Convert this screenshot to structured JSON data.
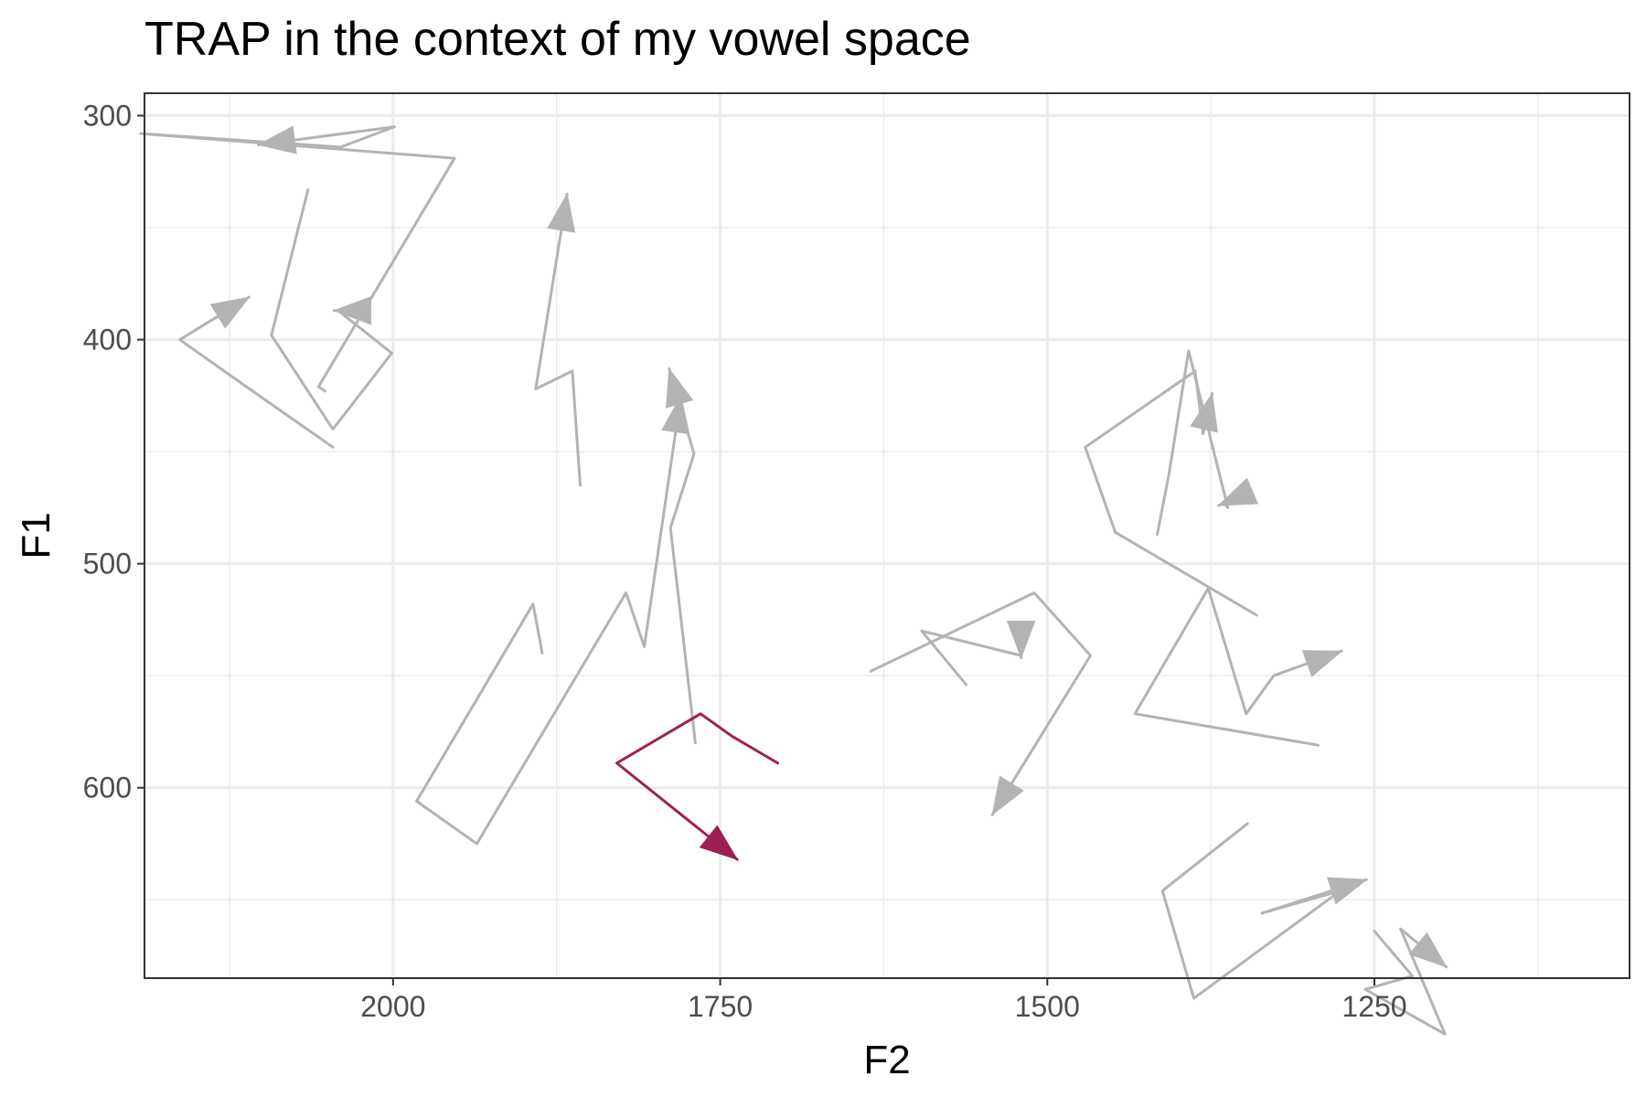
{
  "chart_data": {
    "type": "line",
    "title": "TRAP in the context of my vowel space",
    "xlabel": "F2",
    "ylabel": "F1",
    "x_reversed": true,
    "y_reversed": true,
    "xlim": [
      2190,
      1055
    ],
    "ylim": [
      290,
      685
    ],
    "x_ticks": [
      2000,
      1750,
      1500,
      1250
    ],
    "y_ticks": [
      300,
      400,
      500,
      600
    ],
    "grid": true,
    "highlight_color": "#9E1F52",
    "other_color": "#B3B3B3",
    "series": [
      {
        "values": [
          [
            1857,
            465
          ],
          [
            1863,
            414
          ],
          [
            1891,
            422
          ],
          [
            1867,
            335
          ]
        ],
        "highlight": false
      },
      {
        "values": [
          [
            2046,
            448
          ],
          [
            2117,
            419
          ],
          [
            2163,
            400
          ],
          [
            2110,
            381
          ]
        ],
        "highlight": false
      },
      {
        "values": [
          [
            1886,
            540
          ],
          [
            1893,
            518
          ],
          [
            1982,
            606
          ],
          [
            1936,
            625
          ],
          [
            1822,
            513
          ],
          [
            1808,
            537
          ],
          [
            1780,
            425
          ]
        ],
        "highlight": false
      },
      {
        "values": [
          [
            2052,
            423
          ],
          [
            2057,
            421
          ],
          [
            1953,
            319
          ],
          [
            2193,
            308
          ],
          [
            2040,
            314
          ],
          [
            1999,
            305
          ],
          [
            2103,
            313
          ]
        ],
        "highlight": false
      },
      {
        "values": [
          [
            2065,
            333
          ],
          [
            2093,
            398
          ],
          [
            2046,
            440
          ],
          [
            2001,
            406
          ],
          [
            2042,
            387
          ],
          [
            2045,
            387
          ]
        ],
        "highlight": false
      },
      {
        "values": [
          [
            1769,
            580
          ],
          [
            1788,
            484
          ],
          [
            1770,
            451
          ],
          [
            1789,
            413
          ]
        ],
        "highlight": false
      },
      {
        "values": [
          [
            1562,
            554
          ],
          [
            1596,
            530
          ],
          [
            1520,
            541
          ],
          [
            1520,
            542
          ]
        ],
        "highlight": false
      },
      {
        "values": [
          [
            1635,
            548
          ],
          [
            1510,
            513
          ],
          [
            1467,
            541
          ],
          [
            1542,
            612
          ]
        ],
        "highlight": false
      },
      {
        "values": [
          [
            1340,
            523
          ],
          [
            1448,
            486
          ],
          [
            1471,
            448
          ],
          [
            1387,
            414
          ],
          [
            1381,
            442
          ],
          [
            1374,
            424
          ]
        ],
        "highlight": false
      },
      {
        "values": [
          [
            1416,
            487
          ],
          [
            1407,
            460
          ],
          [
            1392,
            405
          ],
          [
            1362,
            475
          ],
          [
            1365,
            473
          ],
          [
            1369,
            474
          ]
        ],
        "highlight": false
      },
      {
        "values": [
          [
            1293,
            581
          ],
          [
            1433,
            567
          ],
          [
            1377,
            511
          ],
          [
            1348,
            567
          ],
          [
            1327,
            550
          ],
          [
            1275,
            539
          ]
        ],
        "highlight": false
      },
      {
        "values": [
          [
            1347,
            616
          ],
          [
            1412,
            646
          ],
          [
            1388,
            694
          ],
          [
            1276,
            646
          ],
          [
            1336,
            656
          ],
          [
            1256,
            641
          ]
        ],
        "highlight": false
      },
      {
        "values": [
          [
            1250,
            664
          ],
          [
            1221,
            684
          ],
          [
            1257,
            690
          ],
          [
            1196,
            710
          ],
          [
            1230,
            663
          ],
          [
            1195,
            680
          ]
        ],
        "highlight": false
      },
      {
        "values": [
          [
            1706,
            589
          ],
          [
            1741,
            577
          ],
          [
            1765,
            567
          ],
          [
            1829,
            589
          ],
          [
            1737,
            632
          ]
        ],
        "highlight": true
      }
    ]
  }
}
